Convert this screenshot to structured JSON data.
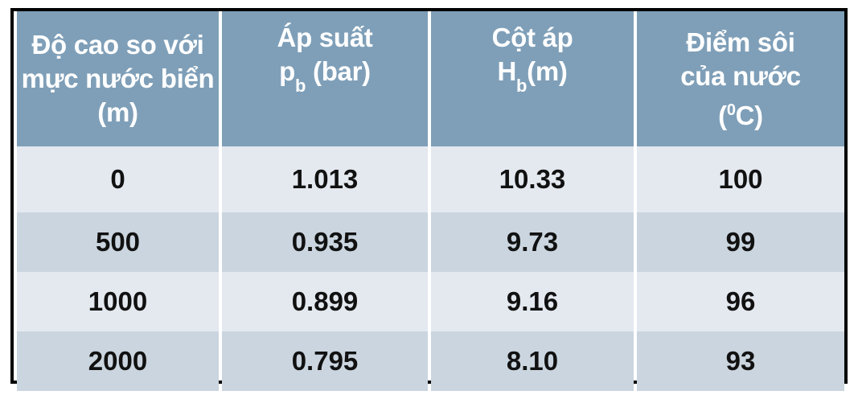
{
  "table": {
    "headers": [
      {
        "line1": "Độ cao so với",
        "line2": "mực nước biển",
        "line3": "(m)"
      },
      {
        "line1": "Áp suất",
        "line2_pre": "p",
        "line2_sub": "b",
        "line2_post": " (bar)"
      },
      {
        "line1": "Cột áp",
        "line2_pre": "H",
        "line2_sub": "b",
        "line2_post": "(m)"
      },
      {
        "line1": "Điểm sôi",
        "line2": "của nước",
        "line3_pre": "(",
        "line3_sup": "0",
        "line3_post": "C)"
      }
    ],
    "rows": [
      [
        "0",
        "1.013",
        "10.33",
        "100"
      ],
      [
        "500",
        "0.935",
        "9.73",
        "99"
      ],
      [
        "1000",
        "0.899",
        "9.16",
        "96"
      ],
      [
        "2000",
        "0.795",
        "8.10",
        "93"
      ]
    ]
  },
  "colors": {
    "header_bg": "#7f9fb8",
    "row_light": "#e4e9f0",
    "row_dark": "#cad5df",
    "border": "#000000"
  }
}
